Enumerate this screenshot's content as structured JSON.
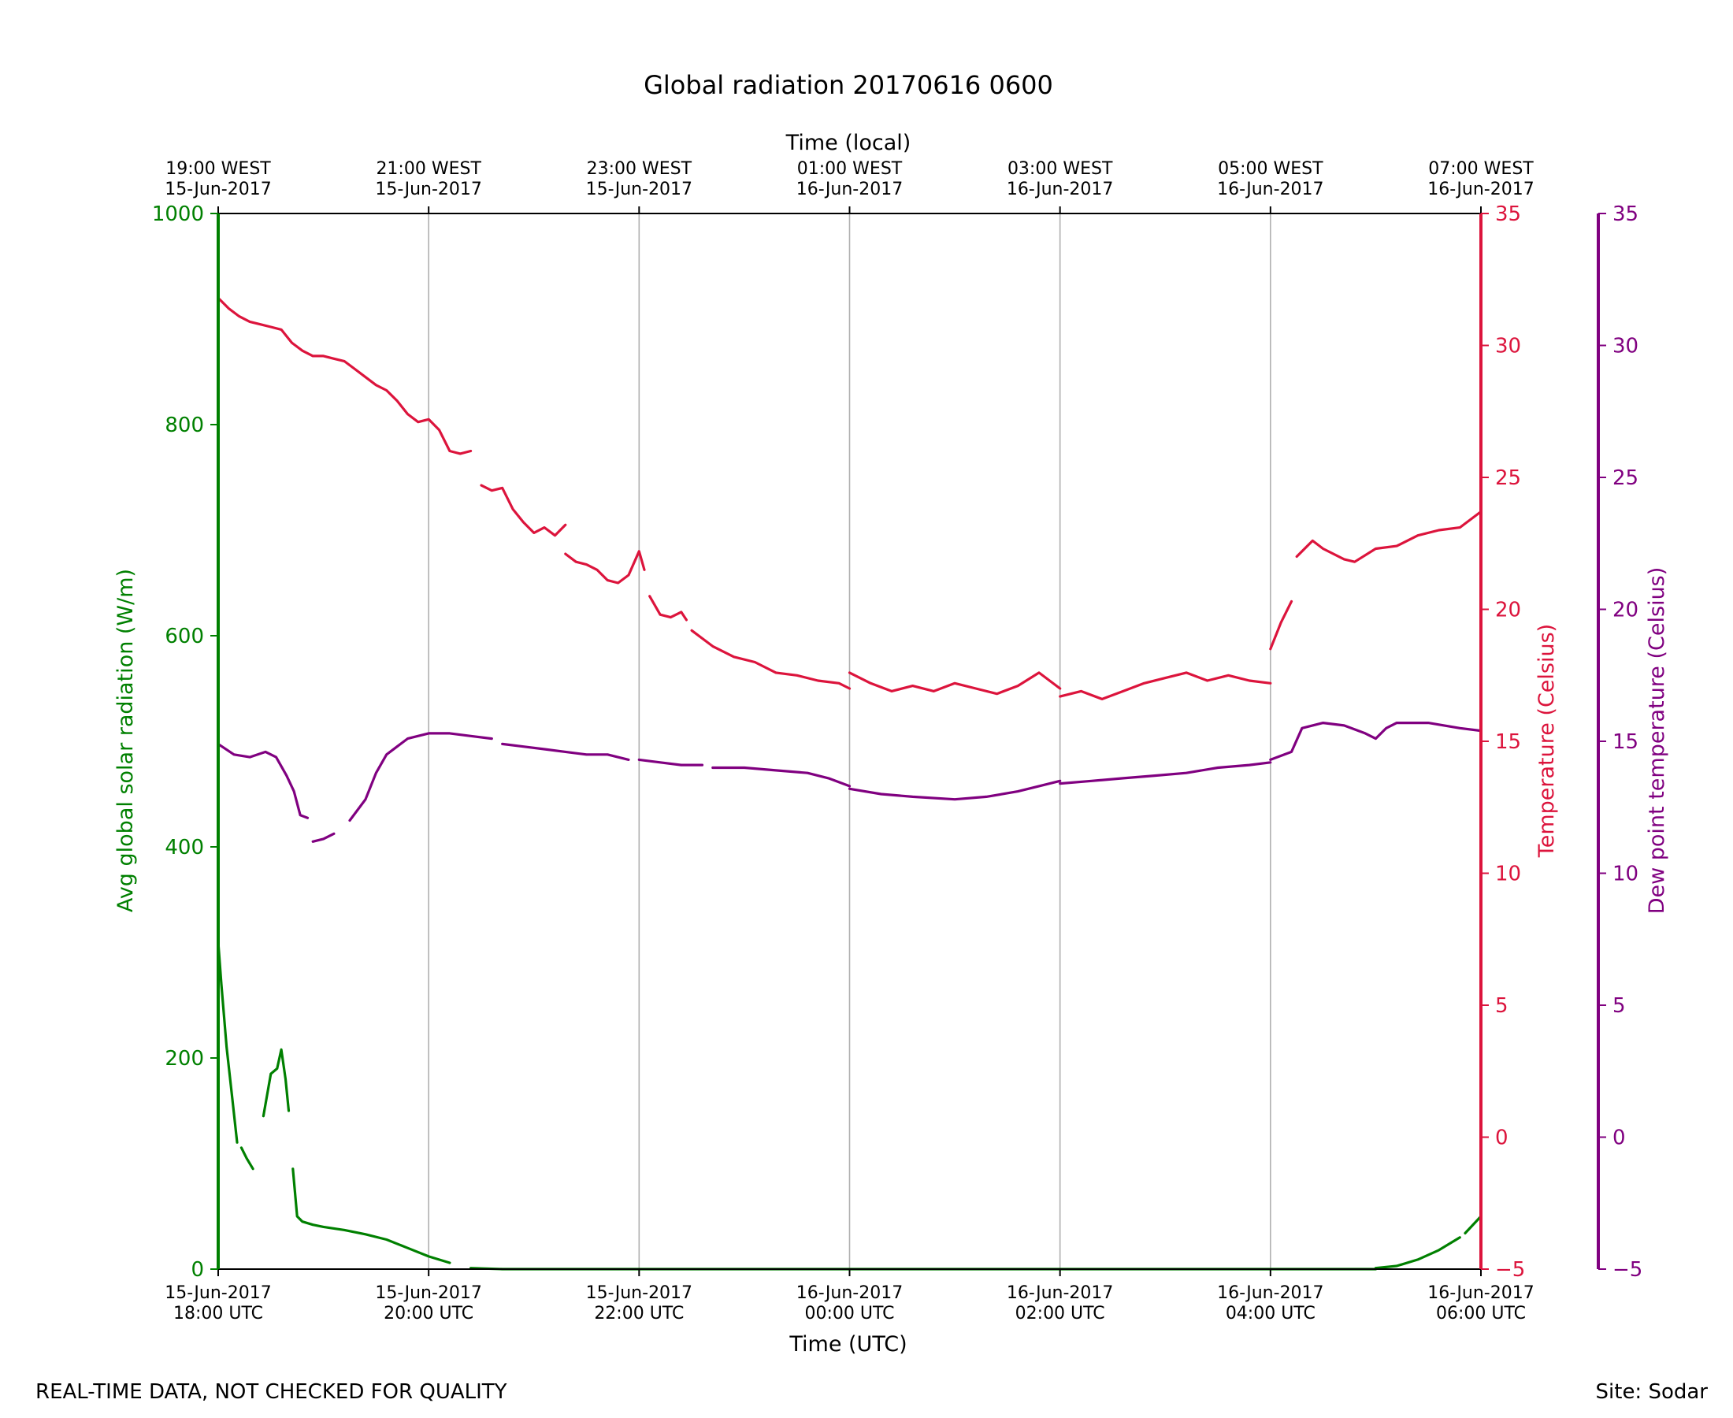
{
  "footer": {
    "left_note": "REAL-TIME DATA, NOT CHECKED FOR QUALITY",
    "site": "Site: Sodar"
  },
  "chart_data": {
    "type": "line",
    "title": "Global radiation 20170616 0600",
    "xlabel": "Time (UTC)",
    "x2label": "Time (local)",
    "ylabel": "Avg global solar radiation (W/m)",
    "y2label": "Temperature (Celsius)",
    "y3label": "Dew point temperature (Celsius)",
    "x_unit": "hours since 15-Jun-2017 18:00 UTC",
    "xlim": [
      0,
      12
    ],
    "ylim": [
      0,
      1000
    ],
    "y2lim": [
      -5,
      35
    ],
    "y3lim": [
      -5,
      35
    ],
    "grid": "vertical",
    "colors": {
      "radiation": "#008000",
      "temperature": "#dc143c",
      "dewpoint": "#800080",
      "grid": "#b0b0b0"
    },
    "x_ticks_bottom": [
      {
        "x": 0,
        "line1": "15-Jun-2017",
        "line2": "18:00 UTC"
      },
      {
        "x": 2,
        "line1": "15-Jun-2017",
        "line2": "20:00 UTC"
      },
      {
        "x": 4,
        "line1": "15-Jun-2017",
        "line2": "22:00 UTC"
      },
      {
        "x": 6,
        "line1": "16-Jun-2017",
        "line2": "00:00 UTC"
      },
      {
        "x": 8,
        "line1": "16-Jun-2017",
        "line2": "02:00 UTC"
      },
      {
        "x": 10,
        "line1": "16-Jun-2017",
        "line2": "04:00 UTC"
      },
      {
        "x": 12,
        "line1": "16-Jun-2017",
        "line2": "06:00 UTC"
      }
    ],
    "x_ticks_top": [
      {
        "x": 0,
        "line1": "19:00 WEST",
        "line2": "15-Jun-2017"
      },
      {
        "x": 2,
        "line1": "21:00 WEST",
        "line2": "15-Jun-2017"
      },
      {
        "x": 4,
        "line1": "23:00 WEST",
        "line2": "15-Jun-2017"
      },
      {
        "x": 6,
        "line1": "01:00 WEST",
        "line2": "16-Jun-2017"
      },
      {
        "x": 8,
        "line1": "03:00 WEST",
        "line2": "16-Jun-2017"
      },
      {
        "x": 10,
        "line1": "05:00 WEST",
        "line2": "16-Jun-2017"
      },
      {
        "x": 12,
        "line1": "07:00 WEST",
        "line2": "16-Jun-2017"
      }
    ],
    "y_ticks": [
      0,
      200,
      400,
      600,
      800,
      1000
    ],
    "y2_ticks": [
      "−5",
      "0",
      "5",
      "10",
      "15",
      "20",
      "25",
      "30",
      "35"
    ],
    "y3_ticks": [
      "−5",
      "0",
      "5",
      "10",
      "15",
      "20",
      "25",
      "30",
      "35"
    ],
    "series": [
      {
        "name": "Avg global solar radiation",
        "axis": "y",
        "color": "#008000",
        "segments": [
          [
            [
              0,
              310
            ],
            [
              0.03,
              270
            ],
            [
              0.08,
              210
            ],
            [
              0.13,
              165
            ],
            [
              0.18,
              120
            ]
          ],
          [
            [
              0.22,
              115
            ],
            [
              0.27,
              105
            ],
            [
              0.33,
              95
            ]
          ],
          [
            [
              0.43,
              145
            ],
            [
              0.5,
              185
            ],
            [
              0.56,
              190
            ],
            [
              0.6,
              208
            ],
            [
              0.64,
              180
            ],
            [
              0.67,
              150
            ]
          ],
          [
            [
              0.71,
              95
            ],
            [
              0.75,
              50
            ],
            [
              0.8,
              45
            ],
            [
              0.9,
              42
            ],
            [
              1.0,
              40
            ],
            [
              1.2,
              37
            ],
            [
              1.4,
              33
            ],
            [
              1.6,
              28
            ],
            [
              1.8,
              20
            ],
            [
              2.0,
              12
            ],
            [
              2.2,
              6
            ]
          ],
          [
            [
              2.4,
              1
            ],
            [
              2.7,
              0
            ],
            [
              3.5,
              0
            ],
            [
              6.0,
              0
            ],
            [
              8.0,
              0
            ],
            [
              10.0,
              0
            ],
            [
              11.0,
              0
            ]
          ],
          [
            [
              11.0,
              1
            ],
            [
              11.2,
              3
            ],
            [
              11.4,
              9
            ],
            [
              11.6,
              18
            ],
            [
              11.8,
              30
            ]
          ],
          [
            [
              11.85,
              34
            ],
            [
              12.0,
              50
            ]
          ]
        ]
      },
      {
        "name": "Temperature",
        "axis": "y2",
        "color": "#dc143c",
        "segments": [
          [
            [
              0,
              31.8
            ],
            [
              0.1,
              31.4
            ],
            [
              0.2,
              31.1
            ],
            [
              0.3,
              30.9
            ],
            [
              0.4,
              30.8
            ],
            [
              0.5,
              30.7
            ],
            [
              0.6,
              30.6
            ],
            [
              0.7,
              30.1
            ],
            [
              0.8,
              29.8
            ],
            [
              0.9,
              29.6
            ],
            [
              1.0,
              29.6
            ],
            [
              1.1,
              29.5
            ],
            [
              1.2,
              29.4
            ],
            [
              1.3,
              29.1
            ],
            [
              1.4,
              28.8
            ],
            [
              1.5,
              28.5
            ],
            [
              1.6,
              28.3
            ],
            [
              1.7,
              27.9
            ],
            [
              1.8,
              27.4
            ],
            [
              1.9,
              27.1
            ],
            [
              2.0,
              27.2
            ],
            [
              2.1,
              26.8
            ],
            [
              2.2,
              26.0
            ],
            [
              2.3,
              25.9
            ],
            [
              2.4,
              26.0
            ]
          ],
          [
            [
              2.5,
              24.7
            ],
            [
              2.6,
              24.5
            ],
            [
              2.7,
              24.6
            ],
            [
              2.8,
              23.8
            ],
            [
              2.9,
              23.3
            ],
            [
              3.0,
              22.9
            ],
            [
              3.1,
              23.1
            ],
            [
              3.2,
              22.8
            ],
            [
              3.3,
              23.2
            ]
          ],
          [
            [
              3.3,
              22.1
            ],
            [
              3.4,
              21.8
            ],
            [
              3.5,
              21.7
            ],
            [
              3.6,
              21.5
            ],
            [
              3.7,
              21.1
            ],
            [
              3.8,
              21.0
            ],
            [
              3.9,
              21.3
            ],
            [
              4.0,
              22.2
            ],
            [
              4.05,
              21.5
            ]
          ],
          [
            [
              4.1,
              20.5
            ],
            [
              4.2,
              19.8
            ],
            [
              4.3,
              19.7
            ],
            [
              4.4,
              19.9
            ],
            [
              4.45,
              19.6
            ]
          ],
          [
            [
              4.5,
              19.2
            ],
            [
              4.7,
              18.6
            ],
            [
              4.9,
              18.2
            ],
            [
              5.1,
              18.0
            ],
            [
              5.3,
              17.6
            ],
            [
              5.5,
              17.5
            ],
            [
              5.7,
              17.3
            ],
            [
              5.9,
              17.2
            ],
            [
              6.0,
              17.0
            ]
          ],
          [
            [
              6.0,
              17.6
            ],
            [
              6.2,
              17.2
            ],
            [
              6.4,
              16.9
            ],
            [
              6.6,
              17.1
            ],
            [
              6.8,
              16.9
            ],
            [
              7.0,
              17.2
            ],
            [
              7.2,
              17.0
            ],
            [
              7.4,
              16.8
            ],
            [
              7.6,
              17.1
            ],
            [
              7.8,
              17.6
            ],
            [
              8.0,
              17.0
            ]
          ],
          [
            [
              8.0,
              16.7
            ],
            [
              8.2,
              16.9
            ],
            [
              8.4,
              16.6
            ],
            [
              8.6,
              16.9
            ],
            [
              8.8,
              17.2
            ],
            [
              9.0,
              17.4
            ],
            [
              9.2,
              17.6
            ],
            [
              9.4,
              17.3
            ],
            [
              9.6,
              17.5
            ],
            [
              9.8,
              17.3
            ],
            [
              10.0,
              17.2
            ]
          ],
          [
            [
              10.0,
              18.5
            ],
            [
              10.1,
              19.5
            ],
            [
              10.2,
              20.3
            ]
          ],
          [
            [
              10.25,
              22.0
            ],
            [
              10.4,
              22.6
            ],
            [
              10.5,
              22.3
            ],
            [
              10.7,
              21.9
            ],
            [
              10.8,
              21.8
            ],
            [
              11.0,
              22.3
            ],
            [
              11.2,
              22.4
            ],
            [
              11.4,
              22.8
            ],
            [
              11.6,
              23.0
            ],
            [
              11.8,
              23.1
            ],
            [
              12.0,
              23.7
            ]
          ]
        ]
      },
      {
        "name": "Dew point temperature",
        "axis": "y3",
        "color": "#800080",
        "segments": [
          [
            [
              0,
              14.9
            ],
            [
              0.15,
              14.5
            ],
            [
              0.3,
              14.4
            ],
            [
              0.45,
              14.6
            ],
            [
              0.55,
              14.4
            ],
            [
              0.65,
              13.7
            ],
            [
              0.72,
              13.1
            ],
            [
              0.78,
              12.2
            ],
            [
              0.85,
              12.1
            ]
          ],
          [
            [
              0.9,
              11.2
            ],
            [
              1.0,
              11.3
            ],
            [
              1.1,
              11.5
            ]
          ],
          [
            [
              1.25,
              12.0
            ],
            [
              1.4,
              12.8
            ],
            [
              1.5,
              13.8
            ],
            [
              1.6,
              14.5
            ],
            [
              1.7,
              14.8
            ],
            [
              1.8,
              15.1
            ],
            [
              2.0,
              15.3
            ],
            [
              2.2,
              15.3
            ],
            [
              2.4,
              15.2
            ],
            [
              2.6,
              15.1
            ]
          ],
          [
            [
              2.7,
              14.9
            ],
            [
              2.9,
              14.8
            ],
            [
              3.1,
              14.7
            ],
            [
              3.3,
              14.6
            ],
            [
              3.5,
              14.5
            ],
            [
              3.7,
              14.5
            ],
            [
              3.9,
              14.3
            ]
          ],
          [
            [
              4.0,
              14.3
            ],
            [
              4.2,
              14.2
            ],
            [
              4.4,
              14.1
            ],
            [
              4.6,
              14.1
            ]
          ],
          [
            [
              4.7,
              14.0
            ],
            [
              5.0,
              14.0
            ],
            [
              5.3,
              13.9
            ],
            [
              5.6,
              13.8
            ],
            [
              5.8,
              13.6
            ],
            [
              6.0,
              13.3
            ]
          ],
          [
            [
              6.0,
              13.2
            ],
            [
              6.3,
              13.0
            ],
            [
              6.6,
              12.9
            ],
            [
              7.0,
              12.8
            ],
            [
              7.3,
              12.9
            ],
            [
              7.6,
              13.1
            ],
            [
              7.8,
              13.3
            ],
            [
              8.0,
              13.5
            ]
          ],
          [
            [
              8.0,
              13.4
            ],
            [
              8.3,
              13.5
            ],
            [
              8.6,
              13.6
            ],
            [
              8.9,
              13.7
            ],
            [
              9.2,
              13.8
            ],
            [
              9.5,
              14.0
            ],
            [
              9.8,
              14.1
            ],
            [
              10.0,
              14.2
            ]
          ],
          [
            [
              10.0,
              14.3
            ],
            [
              10.2,
              14.6
            ],
            [
              10.3,
              15.5
            ],
            [
              10.5,
              15.7
            ],
            [
              10.7,
              15.6
            ],
            [
              10.9,
              15.3
            ],
            [
              11.0,
              15.1
            ],
            [
              11.1,
              15.5
            ],
            [
              11.2,
              15.7
            ],
            [
              11.5,
              15.7
            ],
            [
              11.8,
              15.5
            ],
            [
              12.0,
              15.4
            ]
          ]
        ]
      }
    ]
  }
}
